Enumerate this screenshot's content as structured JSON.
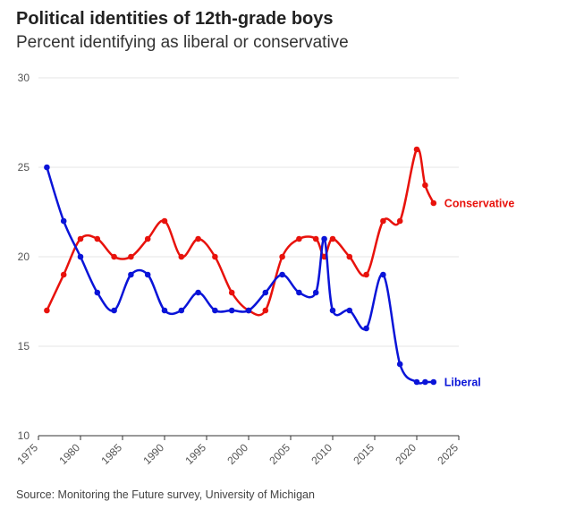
{
  "title": "Political identities of 12th-grade boys",
  "subtitle": "Percent identifying as liberal or conservative",
  "source": "Source: Monitoring the Future survey, University of Michigan",
  "chart_data": {
    "type": "line",
    "title": "Political identities of 12th-grade boys",
    "subtitle": "Percent identifying as liberal or conservative",
    "xlabel": "",
    "ylabel": "",
    "xlim": [
      1975,
      2025
    ],
    "ylim": [
      10,
      30
    ],
    "x_ticks": [
      1975,
      1980,
      1985,
      1990,
      1995,
      2000,
      2005,
      2010,
      2015,
      2020,
      2025
    ],
    "y_ticks": [
      10,
      15,
      20,
      25,
      30
    ],
    "grid": "horizontal",
    "legend": "direct labels at line ends",
    "series": [
      {
        "name": "Conservative",
        "color": "#e8120c",
        "points": [
          [
            1976,
            17
          ],
          [
            1978,
            19
          ],
          [
            1980,
            21
          ],
          [
            1982,
            21
          ],
          [
            1984,
            20
          ],
          [
            1986,
            20
          ],
          [
            1988,
            21
          ],
          [
            1990,
            22
          ],
          [
            1992,
            20
          ],
          [
            1994,
            21
          ],
          [
            1996,
            20
          ],
          [
            1998,
            18
          ],
          [
            2000,
            17
          ],
          [
            2002,
            17
          ],
          [
            2004,
            20
          ],
          [
            2006,
            21
          ],
          [
            2008,
            21
          ],
          [
            2009,
            20
          ],
          [
            2010,
            21
          ],
          [
            2012,
            20
          ],
          [
            2014,
            19
          ],
          [
            2016,
            22
          ],
          [
            2018,
            22
          ],
          [
            2020,
            26
          ],
          [
            2021,
            24
          ],
          [
            2022,
            23
          ]
        ]
      },
      {
        "name": "Liberal",
        "color": "#0a14d8",
        "points": [
          [
            1976,
            25
          ],
          [
            1978,
            22
          ],
          [
            1980,
            20
          ],
          [
            1982,
            18
          ],
          [
            1984,
            17
          ],
          [
            1986,
            19
          ],
          [
            1988,
            19
          ],
          [
            1990,
            17
          ],
          [
            1992,
            17
          ],
          [
            1994,
            18
          ],
          [
            1996,
            17
          ],
          [
            1998,
            17
          ],
          [
            2000,
            17
          ],
          [
            2002,
            18
          ],
          [
            2004,
            19
          ],
          [
            2006,
            18
          ],
          [
            2008,
            18
          ],
          [
            2009,
            21
          ],
          [
            2010,
            17
          ],
          [
            2012,
            17
          ],
          [
            2014,
            16
          ],
          [
            2016,
            19
          ],
          [
            2018,
            14
          ],
          [
            2020,
            13
          ],
          [
            2021,
            13
          ],
          [
            2022,
            13
          ]
        ]
      }
    ]
  }
}
